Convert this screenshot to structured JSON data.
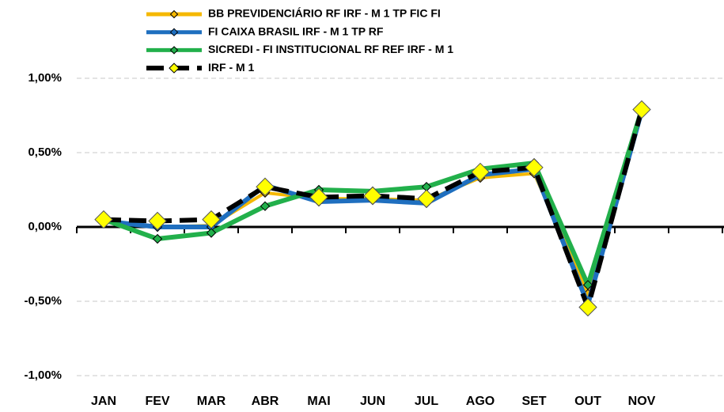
{
  "chart_data": {
    "type": "line",
    "categories": [
      "JAN",
      "FEV",
      "MAR",
      "ABR",
      "MAI",
      "JUN",
      "JUL",
      "AGO",
      "SET",
      "OUT",
      "NOV",
      null
    ],
    "series": [
      {
        "name": "BB PREVIDENCIÁRIO RF IRF - M 1 TP FIC FI",
        "color": "#f5b800",
        "marker_fill": "#f5b800",
        "values": [
          0.04,
          0.0,
          0.01,
          0.23,
          0.19,
          0.19,
          0.18,
          0.33,
          0.36,
          -0.45,
          0.79,
          null
        ]
      },
      {
        "name": "FI CAIXA BRASIL IRF - M 1 TP RF",
        "color": "#1f6fbf",
        "marker_fill": "#1f6fbf",
        "values": [
          0.04,
          0.0,
          0.0,
          0.28,
          0.17,
          0.18,
          0.16,
          0.35,
          0.39,
          -0.52,
          0.78,
          null
        ]
      },
      {
        "name": "SICREDI - FI INSTITUCIONAL RF REF IRF - M 1",
        "color": "#22b04b",
        "marker_fill": "#22b04b",
        "values": [
          0.05,
          -0.08,
          -0.04,
          0.14,
          0.25,
          0.24,
          0.27,
          0.39,
          0.43,
          -0.39,
          0.79,
          null
        ]
      },
      {
        "name": "IRF - M 1",
        "color": "#000000",
        "marker_fill": "#ffff00",
        "dashed": true,
        "values": [
          0.05,
          0.04,
          0.05,
          0.27,
          0.2,
          0.21,
          0.19,
          0.37,
          0.4,
          -0.54,
          0.79,
          null
        ]
      }
    ],
    "ylim": [
      -1.0,
      1.0
    ],
    "yticks": [
      {
        "value": -1.0,
        "label": "-1,00%"
      },
      {
        "value": -0.5,
        "label": "-0,50%"
      },
      {
        "value": 0.0,
        "label": "0,00%"
      },
      {
        "value": 0.5,
        "label": "0,50%"
      },
      {
        "value": 1.0,
        "label": "1,00%"
      }
    ],
    "grid": true
  }
}
